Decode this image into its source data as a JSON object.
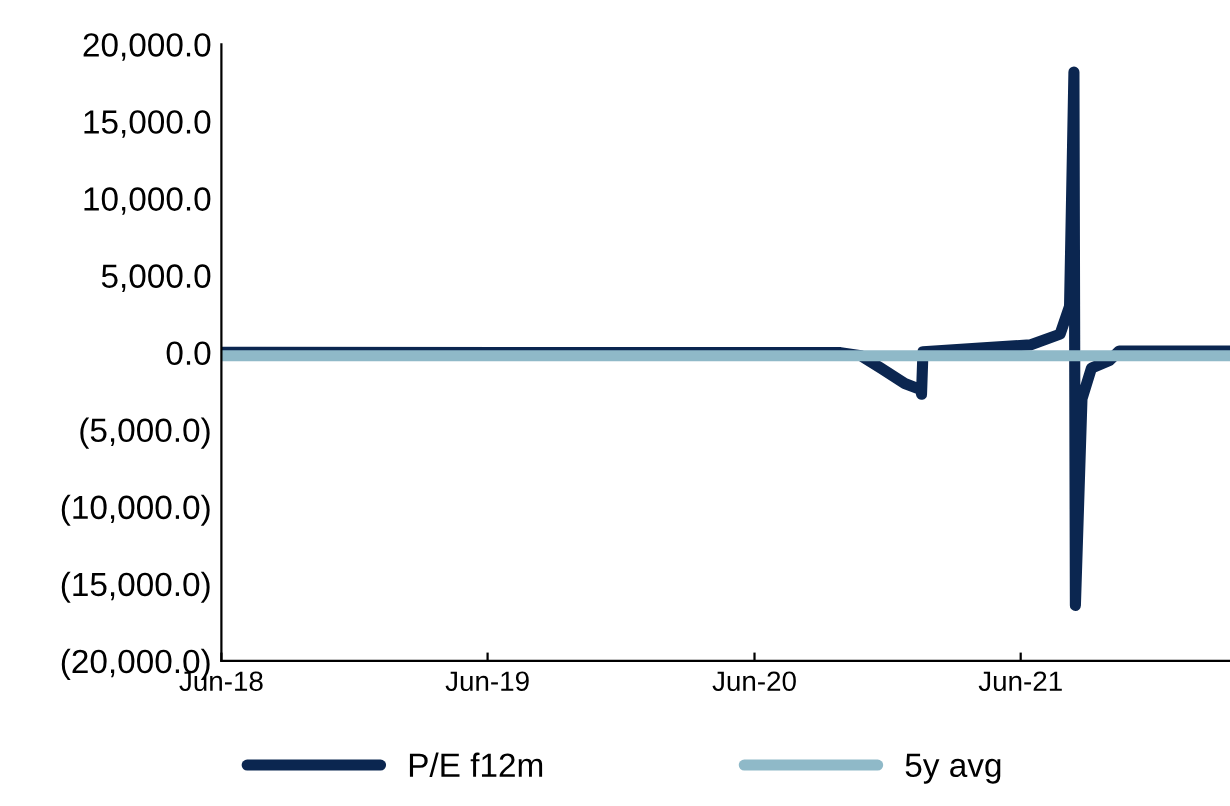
{
  "chart_data": {
    "type": "line",
    "xlim": [
      "2018-06-01",
      "2022-03-15"
    ],
    "xticks": [
      {
        "value": "2018-06-01",
        "label": "Jun-18"
      },
      {
        "value": "2019-06-01",
        "label": "Jun-19"
      },
      {
        "value": "2020-06-01",
        "label": "Jun-20"
      },
      {
        "value": "2021-06-01",
        "label": "Jun-21"
      }
    ],
    "ylim": [
      -20000,
      20000
    ],
    "yticks": [
      {
        "value": -20000,
        "label": "(20,000.0)"
      },
      {
        "value": -15000,
        "label": "(15,000.0)"
      },
      {
        "value": -10000,
        "label": "(10,000.0)"
      },
      {
        "value": -5000,
        "label": "(5,000.0)"
      },
      {
        "value": 0,
        "label": "0.0"
      },
      {
        "value": 5000,
        "label": "5,000.0"
      },
      {
        "value": 10000,
        "label": "10,000.0"
      },
      {
        "value": 15000,
        "label": "15,000.0"
      },
      {
        "value": 20000,
        "label": "20,000.0"
      }
    ],
    "grid": false,
    "legend": "bottom",
    "line_style": "solid",
    "marker": "none",
    "series": [
      {
        "name": "P/E f12m",
        "color": "#0b2650",
        "x": [
          "2018-06-01",
          "2020-09-27",
          "2020-10-25",
          "2020-11-21",
          "2020-12-24",
          "2021-01-15",
          "2021-01-16",
          "2021-01-18",
          "2021-04-06",
          "2021-06-14",
          "2021-07-25",
          "2021-08-07",
          "2021-08-13",
          "2021-08-15",
          "2021-08-24",
          "2021-09-06",
          "2021-10-01",
          "2021-10-14",
          "2022-03-14"
        ],
        "values": [
          20,
          0,
          -200,
          -1000,
          -2000,
          -2400,
          -2700,
          50,
          300,
          500,
          1200,
          3000,
          18200,
          -16400,
          -3000,
          -1000,
          -500,
          100,
          100
        ]
      },
      {
        "name": "5y avg",
        "color": "#8fb9c8",
        "x": [
          "2018-06-01",
          "2022-03-15"
        ],
        "values": [
          -200,
          -200
        ]
      }
    ]
  }
}
